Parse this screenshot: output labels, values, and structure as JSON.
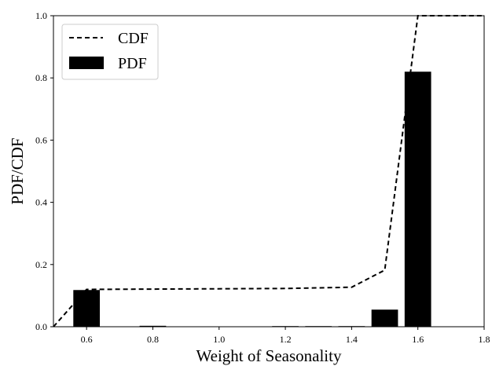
{
  "chart_data": {
    "type": "bar",
    "title": "",
    "xlabel": "Weight of Seasonality",
    "ylabel": "PDF/CDF",
    "xlim": [
      0.5,
      1.8
    ],
    "ylim": [
      0.0,
      1.0
    ],
    "xticks": [
      "0.6",
      "0.8",
      "1.0",
      "1.2",
      "1.4",
      "1.6",
      "1.8"
    ],
    "yticks": [
      "0.0",
      "0.2",
      "0.4",
      "0.6",
      "0.8",
      "1.0"
    ],
    "grid": false,
    "legend_position": "top-left",
    "bar_width": 0.08,
    "bar_series": {
      "name": "PDF",
      "color": "#000000",
      "x": [
        0.6,
        0.8,
        1.2,
        1.3,
        1.4,
        1.5,
        1.6
      ],
      "values": [
        0.118,
        0.003,
        0.002,
        0.002,
        0.002,
        0.055,
        0.82
      ]
    },
    "line_series": {
      "name": "CDF",
      "color": "#000000",
      "style": "dashed",
      "x": [
        0.5,
        0.6,
        0.8,
        1.2,
        1.3,
        1.4,
        1.5,
        1.6,
        1.8
      ],
      "values": [
        0.0,
        0.12,
        0.121,
        0.123,
        0.125,
        0.127,
        0.182,
        1.0,
        1.0
      ]
    },
    "legend": [
      "CDF",
      "PDF"
    ]
  }
}
